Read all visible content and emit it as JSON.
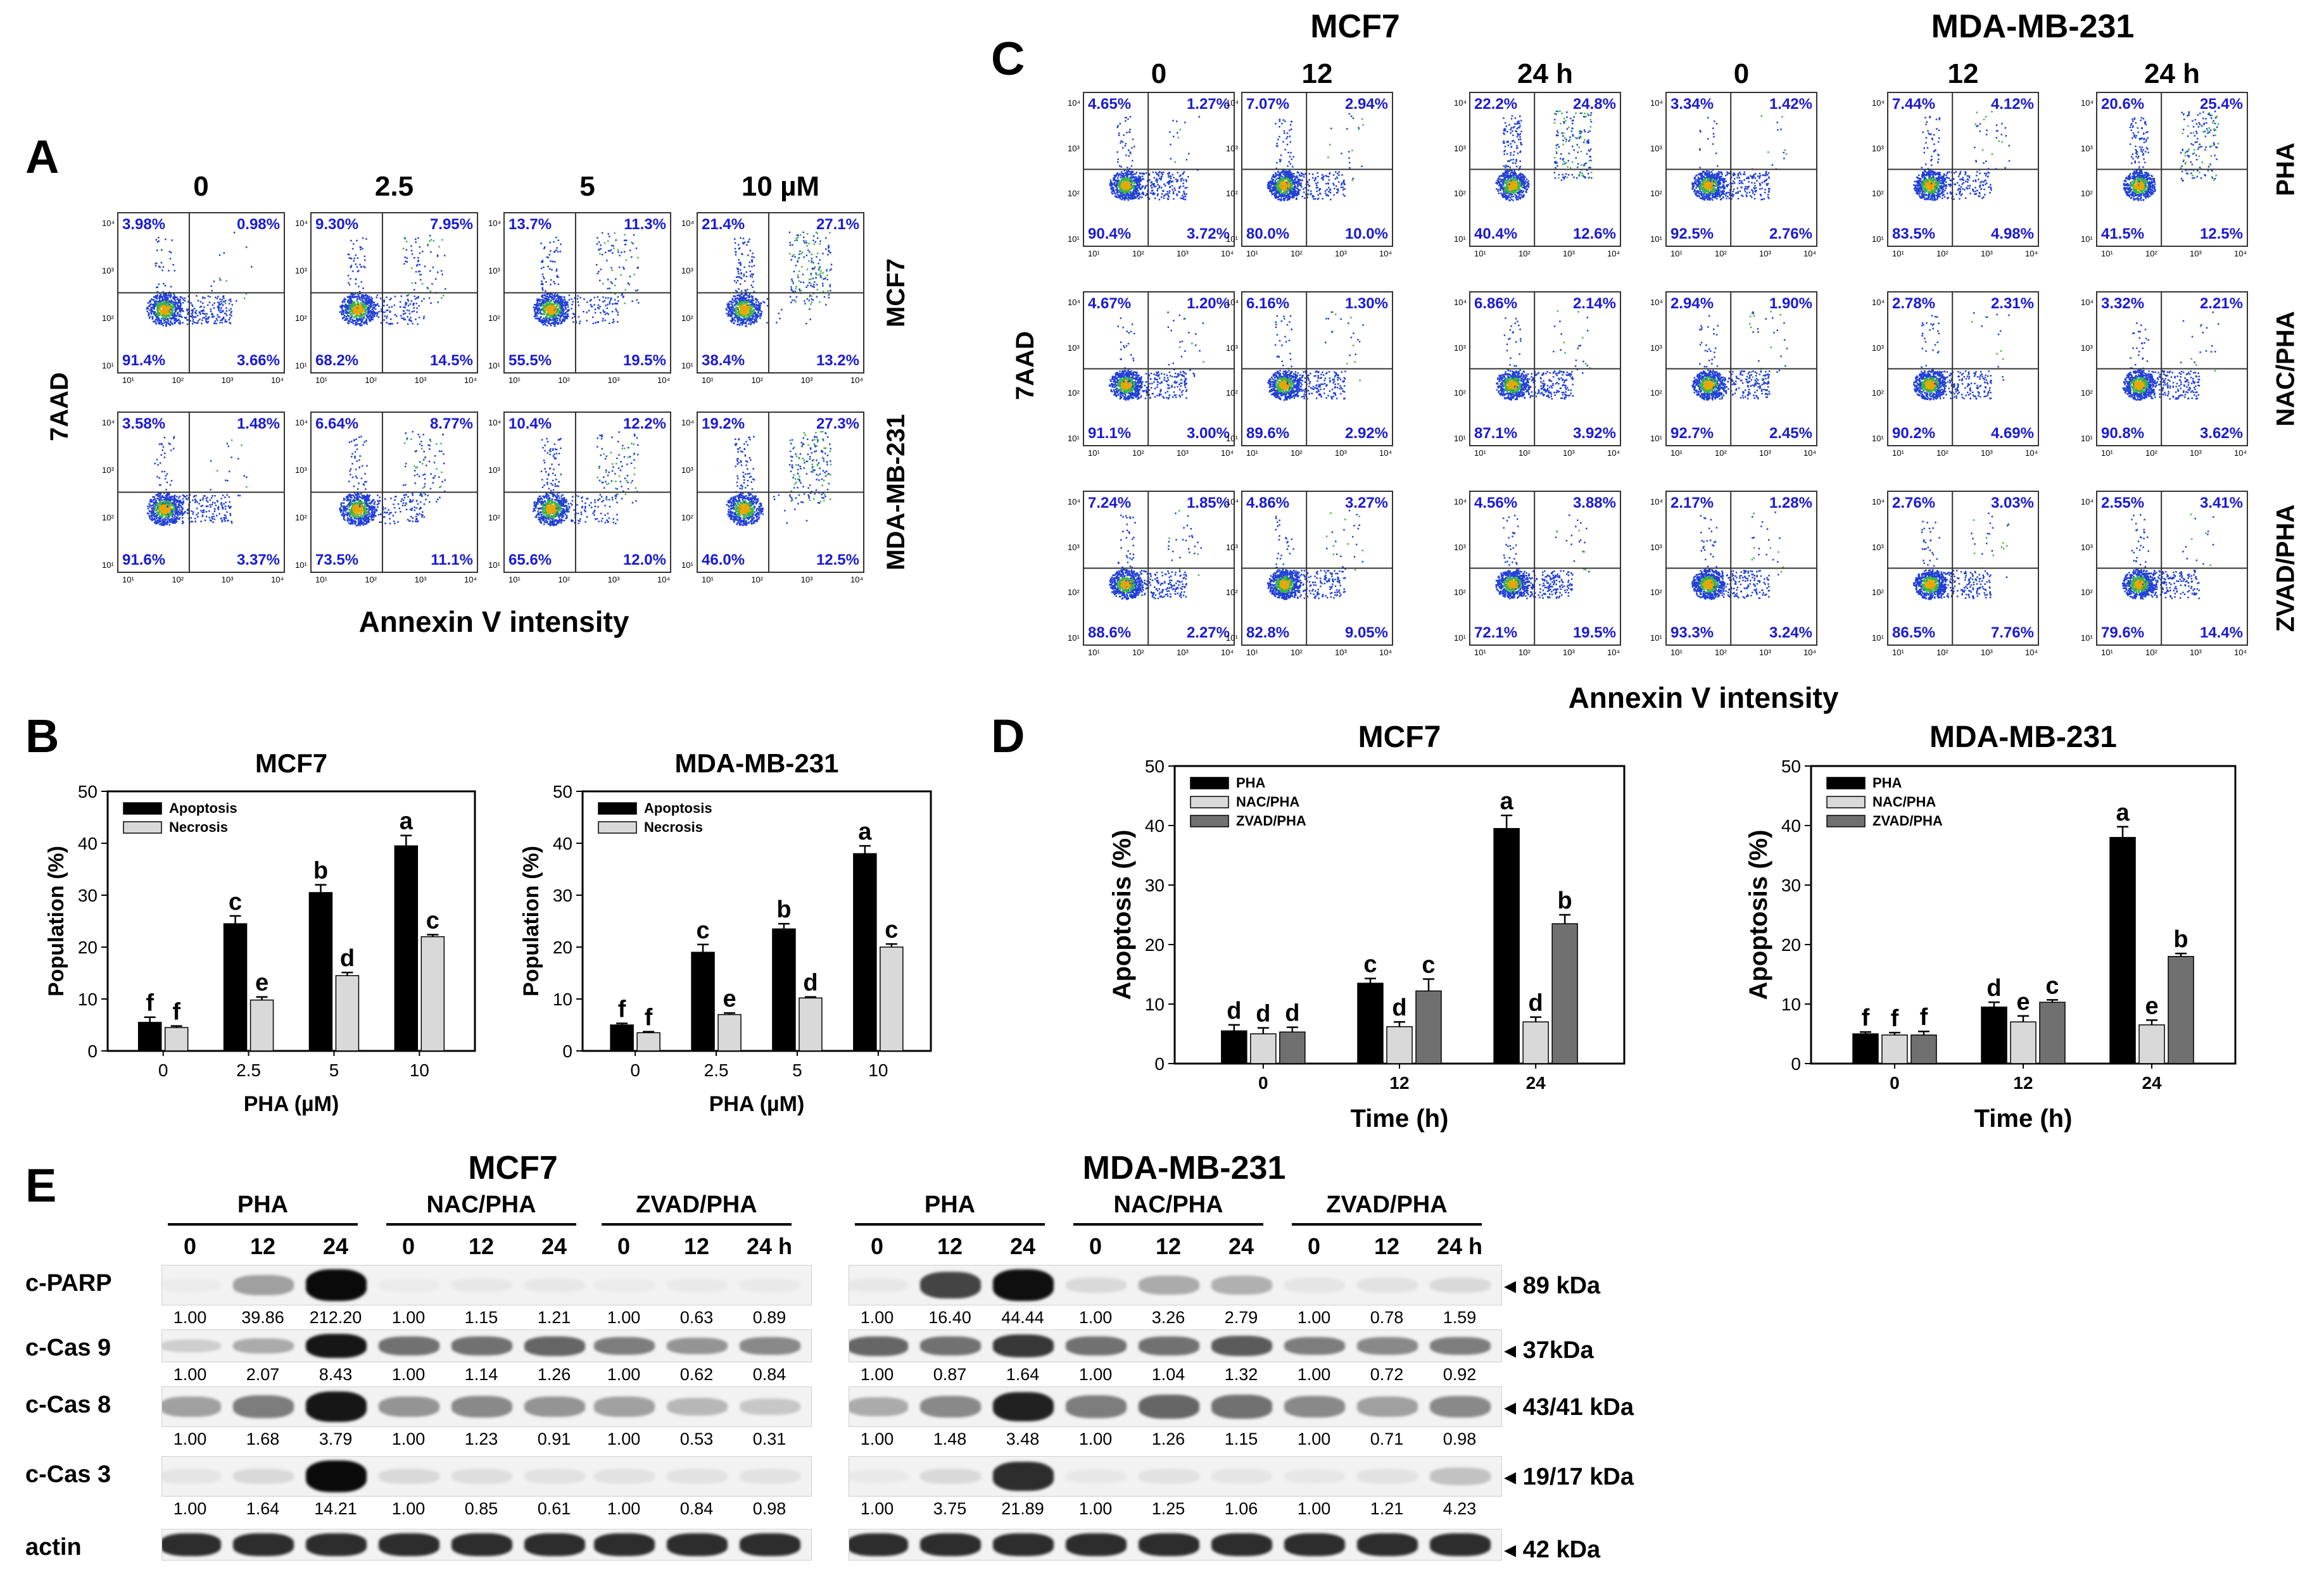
{
  "panelA": {
    "label": "A",
    "col_headers": [
      "0",
      "2.5",
      "5",
      "10 µM"
    ],
    "row_labels": [
      "MCF7",
      "MDA-MB-231"
    ],
    "y_axis": "7AAD",
    "x_axis": "Annexin V intensity",
    "ticks": [
      "10¹",
      "10²",
      "10³",
      "10⁴"
    ],
    "plots": [
      [
        [
          "3.98%",
          "0.98%",
          "91.4%",
          "3.66%"
        ],
        [
          "9.30%",
          "7.95%",
          "68.2%",
          "14.5%"
        ],
        [
          "13.7%",
          "11.3%",
          "55.5%",
          "19.5%"
        ],
        [
          "21.4%",
          "27.1%",
          "38.4%",
          "13.2%"
        ]
      ],
      [
        [
          "3.58%",
          "1.48%",
          "91.6%",
          "3.37%"
        ],
        [
          "6.64%",
          "8.77%",
          "73.5%",
          "11.1%"
        ],
        [
          "10.4%",
          "12.2%",
          "65.6%",
          "12.0%"
        ],
        [
          "19.2%",
          "27.3%",
          "46.0%",
          "12.5%"
        ]
      ]
    ]
  },
  "panelC": {
    "label": "C",
    "group_headers": [
      "MCF7",
      "MDA-MB-231"
    ],
    "col_headers": [
      "0",
      "12",
      "24 h",
      "0",
      "12",
      "24 h"
    ],
    "row_labels": [
      "PHA",
      "NAC/PHA",
      "ZVAD/PHA"
    ],
    "y_axis": "7AAD",
    "x_axis": "Annexin V intensity",
    "plots": [
      [
        [
          "4.65%",
          "1.27%",
          "90.4%",
          "3.72%"
        ],
        [
          "7.07%",
          "2.94%",
          "80.0%",
          "10.0%"
        ],
        [
          "22.2%",
          "24.8%",
          "40.4%",
          "12.6%"
        ],
        [
          "3.34%",
          "1.42%",
          "92.5%",
          "2.76%"
        ],
        [
          "7.44%",
          "4.12%",
          "83.5%",
          "4.98%"
        ],
        [
          "20.6%",
          "25.4%",
          "41.5%",
          "12.5%"
        ]
      ],
      [
        [
          "4.67%",
          "1.20%",
          "91.1%",
          "3.00%"
        ],
        [
          "6.16%",
          "1.30%",
          "89.6%",
          "2.92%"
        ],
        [
          "6.86%",
          "2.14%",
          "87.1%",
          "3.92%"
        ],
        [
          "2.94%",
          "1.90%",
          "92.7%",
          "2.45%"
        ],
        [
          "2.78%",
          "2.31%",
          "90.2%",
          "4.69%"
        ],
        [
          "3.32%",
          "2.21%",
          "90.8%",
          "3.62%"
        ]
      ],
      [
        [
          "7.24%",
          "1.85%",
          "88.6%",
          "2.27%"
        ],
        [
          "4.86%",
          "3.27%",
          "82.8%",
          "9.05%"
        ],
        [
          "4.56%",
          "3.88%",
          "72.1%",
          "19.5%"
        ],
        [
          "2.17%",
          "1.28%",
          "93.3%",
          "3.24%"
        ],
        [
          "2.76%",
          "3.03%",
          "86.5%",
          "7.76%"
        ],
        [
          "2.55%",
          "3.41%",
          "79.6%",
          "14.4%"
        ]
      ]
    ]
  },
  "chart_data": [
    {
      "type": "bar",
      "panel": "B",
      "title": "MCF7",
      "categories": [
        "0",
        "2.5",
        "5",
        "10"
      ],
      "series": [
        {
          "name": "Apoptosis",
          "color": "#000000",
          "values": [
            5.5,
            24.5,
            30.5,
            39.5
          ],
          "errors": [
            1,
            1.5,
            1.5,
            2
          ],
          "letters": [
            "f",
            "c",
            "b",
            "a"
          ]
        },
        {
          "name": "Necrosis",
          "color": "#d9d9d9",
          "values": [
            4.5,
            9.8,
            14.5,
            22
          ],
          "errors": [
            0.3,
            0.6,
            0.6,
            0.4
          ],
          "letters": [
            "f",
            "e",
            "d",
            "c"
          ]
        }
      ],
      "xlabel": "PHA (µM)",
      "ylabel": "Population (%)",
      "ylim": [
        0,
        50
      ],
      "yticks": [
        "0",
        "10",
        "20",
        "30",
        "40",
        "50"
      ],
      "legend": "top-left"
    },
    {
      "type": "bar",
      "panel": "B",
      "title": "MDA-MB-231",
      "categories": [
        "0",
        "2.5",
        "5",
        "10"
      ],
      "series": [
        {
          "name": "Apoptosis",
          "color": "#000000",
          "values": [
            5,
            19,
            23.5,
            38
          ],
          "errors": [
            0.3,
            1.5,
            1,
            1.5
          ],
          "letters": [
            "f",
            "c",
            "b",
            "a"
          ]
        },
        {
          "name": "Necrosis",
          "color": "#d9d9d9",
          "values": [
            3.5,
            7,
            10.2,
            20
          ],
          "errors": [
            0.2,
            0.3,
            0.2,
            0.6
          ],
          "letters": [
            "f",
            "e",
            "d",
            "c"
          ]
        }
      ],
      "xlabel": "PHA (µM)",
      "ylabel": "Population (%)",
      "ylim": [
        0,
        50
      ],
      "yticks": [
        "0",
        "10",
        "20",
        "30",
        "40",
        "50"
      ],
      "legend": "top-left"
    },
    {
      "type": "bar",
      "panel": "D",
      "title": "MCF7",
      "categories": [
        "0",
        "12",
        "24"
      ],
      "series": [
        {
          "name": "PHA",
          "color": "#000000",
          "values": [
            5.5,
            13.5,
            39.5
          ],
          "errors": [
            1,
            0.8,
            2.2
          ],
          "letters": [
            "d",
            "c",
            "a"
          ]
        },
        {
          "name": "NAC/PHA",
          "color": "#d9d9d9",
          "values": [
            5,
            6.2,
            7
          ],
          "errors": [
            1,
            0.8,
            0.8
          ],
          "letters": [
            "d",
            "d",
            "d"
          ]
        },
        {
          "name": "ZVAD/PHA",
          "color": "#707070",
          "values": [
            5.3,
            12.2,
            23.5
          ],
          "errors": [
            0.8,
            2,
            1.5
          ],
          "letters": [
            "d",
            "c",
            "b"
          ]
        }
      ],
      "xlabel": "Time (h)",
      "ylabel": "Apoptosis (%)",
      "ylim": [
        0,
        50
      ],
      "yticks": [
        "0",
        "10",
        "20",
        "30",
        "40",
        "50"
      ],
      "legend": "top-left"
    },
    {
      "type": "bar",
      "panel": "D",
      "title": "MDA-MB-231",
      "categories": [
        "0",
        "12",
        "24"
      ],
      "series": [
        {
          "name": "PHA",
          "color": "#000000",
          "values": [
            5,
            9.5,
            38
          ],
          "errors": [
            0.3,
            0.8,
            1.8
          ],
          "letters": [
            "f",
            "d",
            "a"
          ]
        },
        {
          "name": "NAC/PHA",
          "color": "#d9d9d9",
          "values": [
            4.8,
            7,
            6.5
          ],
          "errors": [
            0.4,
            1,
            0.8
          ],
          "letters": [
            "f",
            "e",
            "e"
          ]
        },
        {
          "name": "ZVAD/PHA",
          "color": "#707070",
          "values": [
            4.8,
            10.3,
            18
          ],
          "errors": [
            0.6,
            0.4,
            0.5
          ],
          "letters": [
            "f",
            "c",
            "b"
          ]
        }
      ],
      "xlabel": "Time (h)",
      "ylabel": "Apoptosis (%)",
      "ylim": [
        0,
        50
      ],
      "yticks": [
        "0",
        "10",
        "20",
        "30",
        "40",
        "50"
      ],
      "legend": "top-left"
    }
  ],
  "panelB": {
    "label": "B"
  },
  "panelD": {
    "label": "D"
  },
  "panelE": {
    "label": "E",
    "cell_lines": [
      "MCF7",
      "MDA-MB-231"
    ],
    "groups": [
      "PHA",
      "NAC/PHA",
      "ZVAD/PHA",
      "PHA",
      "NAC/PHA",
      "ZVAD/PHA"
    ],
    "lanes": [
      "0",
      "12",
      "24",
      "0",
      "12",
      "24",
      "0",
      "12",
      "24 h",
      "0",
      "12",
      "24",
      "0",
      "12",
      "24",
      "0",
      "12",
      "24 h"
    ],
    "rows": [
      {
        "name": "c-PARP",
        "kda": "◂ 89 kDa",
        "values": [
          "1.00",
          "39.86",
          "212.20",
          "1.00",
          "1.15",
          "1.21",
          "1.00",
          "0.63",
          "0.89",
          "1.00",
          "16.40",
          "44.44",
          "1.00",
          "3.26",
          "2.79",
          "1.00",
          "0.78",
          "1.59"
        ],
        "intensity": [
          0.02,
          0.35,
          1.0,
          0.02,
          0.04,
          0.04,
          0.02,
          0.03,
          0.03,
          0.04,
          0.75,
          0.98,
          0.1,
          0.3,
          0.28,
          0.05,
          0.06,
          0.1
        ]
      },
      {
        "name": "c-Cas 9",
        "kda": "◂ 37kDa",
        "values": [
          "1.00",
          "2.07",
          "8.43",
          "1.00",
          "1.14",
          "1.26",
          "1.00",
          "0.62",
          "0.84",
          "1.00",
          "0.87",
          "1.64",
          "1.00",
          "1.04",
          "1.32",
          "1.00",
          "0.72",
          "0.92"
        ],
        "intensity": [
          0.15,
          0.3,
          0.95,
          0.55,
          0.55,
          0.6,
          0.5,
          0.4,
          0.45,
          0.6,
          0.55,
          0.8,
          0.55,
          0.55,
          0.65,
          0.5,
          0.45,
          0.5
        ]
      },
      {
        "name": "c-Cas 8",
        "kda": "◂ 43/41 kDa",
        "values": [
          "1.00",
          "1.68",
          "3.79",
          "1.00",
          "1.23",
          "0.91",
          "1.00",
          "0.53",
          "0.31",
          "1.00",
          "1.48",
          "3.48",
          "1.00",
          "1.26",
          "1.15",
          "1.00",
          "0.71",
          "0.98"
        ],
        "intensity": [
          0.35,
          0.5,
          0.95,
          0.4,
          0.45,
          0.4,
          0.35,
          0.25,
          0.18,
          0.3,
          0.45,
          0.9,
          0.5,
          0.6,
          0.55,
          0.45,
          0.35,
          0.45
        ]
      },
      {
        "name": "c-Cas 3",
        "kda": "◂ 19/17 kDa",
        "values": [
          "1.00",
          "1.64",
          "14.21",
          "1.00",
          "0.85",
          "0.61",
          "1.00",
          "0.84",
          "0.98",
          "1.00",
          "3.75",
          "21.89",
          "1.00",
          "1.25",
          "1.06",
          "1.00",
          "1.21",
          "4.23"
        ],
        "intensity": [
          0.05,
          0.1,
          1.0,
          0.1,
          0.08,
          0.06,
          0.06,
          0.06,
          0.06,
          0.03,
          0.1,
          0.85,
          0.04,
          0.06,
          0.05,
          0.04,
          0.06,
          0.2
        ]
      },
      {
        "name": "actin",
        "kda": "◂ 42 kDa",
        "values": [],
        "intensity": [
          0.85,
          0.85,
          0.85,
          0.85,
          0.85,
          0.85,
          0.85,
          0.85,
          0.85,
          0.85,
          0.85,
          0.85,
          0.85,
          0.85,
          0.85,
          0.85,
          0.85,
          0.85
        ]
      }
    ]
  }
}
